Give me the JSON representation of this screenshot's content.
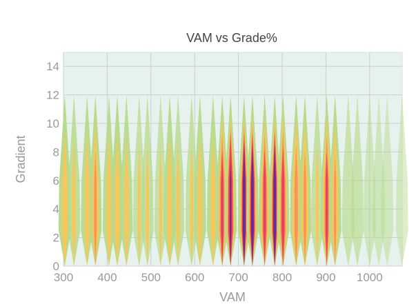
{
  "chart_data": {
    "type": "heatmap",
    "title": "VAM vs Grade%",
    "xlabel": "VAM",
    "ylabel": "Gradient",
    "xlim": [
      300,
      1075
    ],
    "ylim": [
      0,
      15
    ],
    "xticks": [
      "300",
      "400",
      "500",
      "600",
      "700",
      "800",
      "900",
      "1000"
    ],
    "yticks": [
      "0",
      "2",
      "4",
      "6",
      "8",
      "10",
      "12",
      "14"
    ],
    "grid": true,
    "colors": {
      "background": "#e7f2ee",
      "grid": "#c9d0cd",
      "low": "#b7da8c",
      "mid": "#f6c75c",
      "midhigh": "#f7945a",
      "high": "#e5435c",
      "peak": "#6b2a8f"
    },
    "columns": [
      {
        "vam": 303,
        "density": 0.35
      },
      {
        "vam": 324,
        "density": 0.25
      },
      {
        "vam": 354,
        "density": 0.3
      },
      {
        "vam": 373,
        "density": 0.45
      },
      {
        "vam": 404,
        "density": 0.3
      },
      {
        "vam": 423,
        "density": 0.32
      },
      {
        "vam": 444,
        "density": 0.28
      },
      {
        "vam": 473,
        "density": 0.18
      },
      {
        "vam": 492,
        "density": 0.2
      },
      {
        "vam": 522,
        "density": 0.18
      },
      {
        "vam": 543,
        "density": 0.3
      },
      {
        "vam": 562,
        "density": 0.22
      },
      {
        "vam": 593,
        "density": 0.2
      },
      {
        "vam": 612,
        "density": 0.3
      },
      {
        "vam": 642,
        "density": 0.3
      },
      {
        "vam": 663,
        "density": 0.6
      },
      {
        "vam": 682,
        "density": 0.75
      },
      {
        "vam": 713,
        "density": 1.0
      },
      {
        "vam": 732,
        "density": 0.95
      },
      {
        "vam": 760,
        "density": 0.6
      },
      {
        "vam": 783,
        "density": 0.85
      },
      {
        "vam": 802,
        "density": 0.62
      },
      {
        "vam": 832,
        "density": 0.5
      },
      {
        "vam": 852,
        "density": 0.45
      },
      {
        "vam": 880,
        "density": 0.2
      },
      {
        "vam": 902,
        "density": 0.58
      },
      {
        "vam": 921,
        "density": 0.42
      },
      {
        "vam": 951,
        "density": 0.15
      },
      {
        "vam": 972,
        "density": 0.15
      },
      {
        "vam": 1000,
        "density": 0.08
      },
      {
        "vam": 1021,
        "density": 0.08
      },
      {
        "vam": 1040,
        "density": 0.07
      },
      {
        "vam": 1074,
        "density": 0.06
      }
    ]
  }
}
